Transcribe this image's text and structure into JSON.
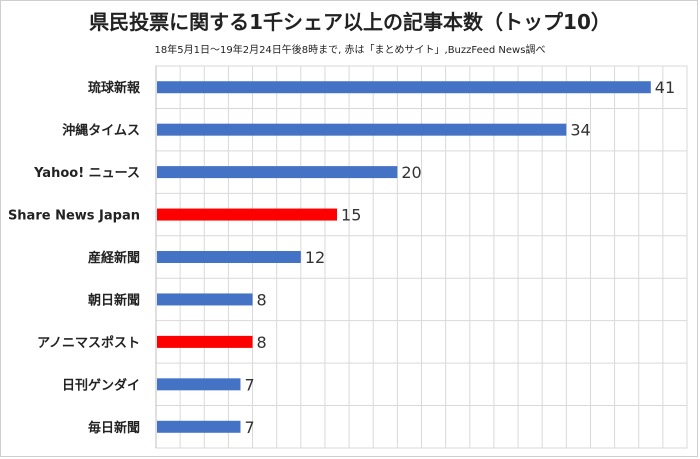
{
  "chart_data": {
    "type": "bar",
    "orientation": "horizontal",
    "title": "県民投票に関する1千シェア以上の記事本数（トップ10）",
    "subtitle": "18年5月1日〜19年2月24日午後8時まで, 赤は「まとめサイト」,BuzzFeed News調べ",
    "categories": [
      "琉球新報",
      "沖縄タイムス",
      "Yahoo! ニュース",
      "Share News Japan",
      "産経新聞",
      "朝日新聞",
      "アノニマスポスト",
      "日刊ゲンダイ",
      "毎日新聞"
    ],
    "values": [
      41,
      34,
      20,
      15,
      12,
      8,
      8,
      7,
      7
    ],
    "highlight": [
      false,
      false,
      false,
      true,
      false,
      false,
      true,
      false,
      false
    ],
    "colors": {
      "default": "#4472c4",
      "highlight": "#ff0000"
    },
    "xlim": [
      0,
      44
    ],
    "grid": true,
    "data_labels": true
  }
}
